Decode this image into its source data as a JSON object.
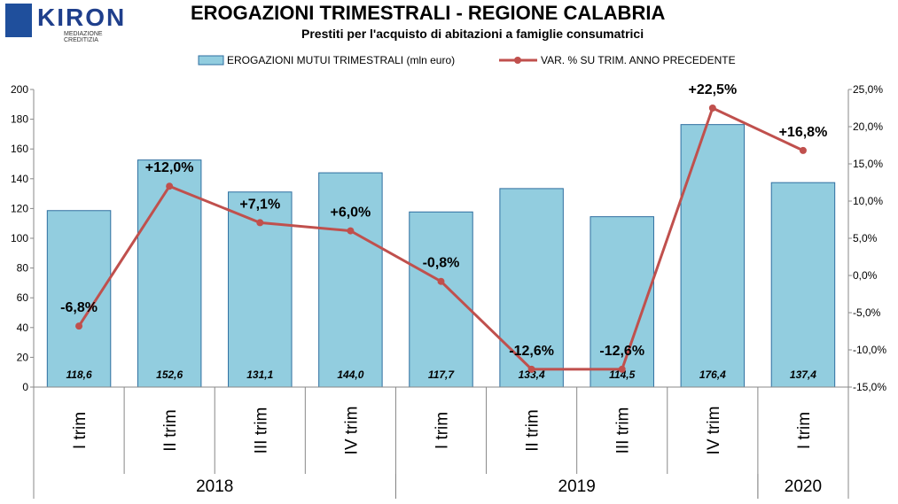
{
  "logo": {
    "word": "KIRON",
    "sub": "MEDIAZIONE CREDITIZIA"
  },
  "header": {
    "title": "EROGAZIONI TRIMESTRALI - REGIONE CALABRIA",
    "subtitle": "Prestiti per l'acquisto di abitazioni a famiglie consumatrici"
  },
  "colors": {
    "bar": "#92cddf",
    "bar_edge": "#2f6fa0",
    "line": "#c0504d"
  },
  "chart_data": {
    "type": "bar",
    "categories": [
      "I trim",
      "II trim",
      "III trim",
      "IV trim",
      "I trim",
      "II trim",
      "III trim",
      "IV trim",
      "I trim"
    ],
    "groups": [
      {
        "label": "2018",
        "count": 4
      },
      {
        "label": "2019",
        "count": 4
      },
      {
        "label": "2020",
        "count": 1
      }
    ],
    "series": [
      {
        "name": "EROGAZIONI MUTUI TRIMESTRALI (mln euro)",
        "type": "bar",
        "axis": "left",
        "values": [
          118.6,
          152.6,
          131.1,
          144.0,
          117.7,
          133.4,
          114.5,
          176.4,
          137.4
        ],
        "labels": [
          "118,6",
          "152,6",
          "131,1",
          "144,0",
          "117,7",
          "133,4",
          "114,5",
          "176,4",
          "137,4"
        ]
      },
      {
        "name": "VAR. % SU TRIM. ANNO PRECEDENTE",
        "type": "line",
        "axis": "right",
        "values": [
          -6.8,
          12.0,
          7.1,
          6.0,
          -0.8,
          -12.6,
          -12.6,
          22.5,
          16.8
        ],
        "labels": [
          "-6,8%",
          "+12,0%",
          "+7,1%",
          "+6,0%",
          "-0,8%",
          "-12,6%",
          "-12,6%",
          "+22,5%",
          "+16,8%"
        ]
      }
    ],
    "ylim": [
      0,
      200
    ],
    "y_ticks": [
      "0",
      "20",
      "40",
      "60",
      "80",
      "100",
      "120",
      "140",
      "160",
      "180",
      "200"
    ],
    "y2lim": [
      -15,
      25
    ],
    "y2_ticks": [
      "-15,0%",
      "-10,0%",
      "-5,0%",
      "0,0%",
      "5,0%",
      "10,0%",
      "15,0%",
      "20,0%",
      "25,0%"
    ],
    "legend": "top-center",
    "grid": false
  }
}
